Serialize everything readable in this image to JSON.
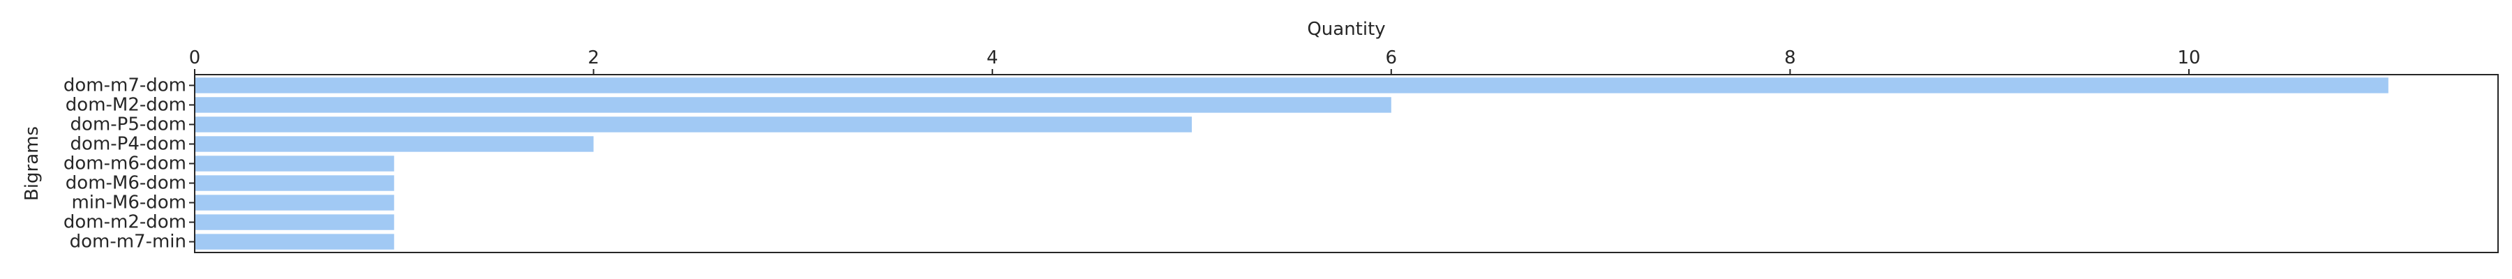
{
  "chart_data": {
    "type": "bar",
    "orientation": "horizontal",
    "xlabel": "Quantity",
    "ylabel": "Bigrams",
    "xlim": [
      0,
      11.55
    ],
    "xticks": [
      0,
      2,
      4,
      6,
      8,
      10
    ],
    "xaxis_position": "top",
    "grid": false,
    "bar_color": "#a1c9f4",
    "categories": [
      "dom-m7-dom",
      "dom-M2-dom",
      "dom-P5-dom",
      "dom-P4-dom",
      "dom-m6-dom",
      "dom-M6-dom",
      "min-M6-dom",
      "dom-m2-dom",
      "dom-m7-min"
    ],
    "values": [
      11,
      6,
      5,
      2,
      1,
      1,
      1,
      1,
      1
    ]
  }
}
